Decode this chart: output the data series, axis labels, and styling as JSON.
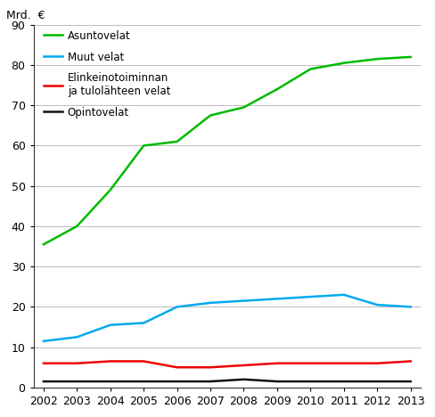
{
  "years": [
    2002,
    2003,
    2004,
    2005,
    2006,
    2007,
    2008,
    2009,
    2010,
    2011,
    2012,
    2013
  ],
  "asuntovelat": [
    35.5,
    40.0,
    49.0,
    60.0,
    61.0,
    67.5,
    69.5,
    74.0,
    79.0,
    80.5,
    81.5,
    82.0
  ],
  "muut_velat": [
    11.5,
    12.5,
    15.5,
    16.0,
    20.0,
    21.0,
    21.5,
    22.0,
    22.5,
    23.0,
    20.5,
    20.0
  ],
  "elinkeinotoiminnan_velat": [
    6.0,
    6.0,
    6.5,
    6.5,
    5.0,
    5.0,
    5.5,
    6.0,
    6.0,
    6.0,
    6.0,
    6.5
  ],
  "opintovelat": [
    1.5,
    1.5,
    1.5,
    1.5,
    1.5,
    1.5,
    2.0,
    1.5,
    1.5,
    1.5,
    1.5,
    1.5
  ],
  "asuntovelat_color": "#00bb00",
  "muut_velat_color": "#00aaee",
  "elinkeinotoiminnan_color": "#ee0000",
  "opintovelat_color": "#111111",
  "ylabel": "Mrd.  €",
  "ylim": [
    0,
    90
  ],
  "yticks": [
    0,
    10,
    20,
    30,
    40,
    50,
    60,
    70,
    80,
    90
  ],
  "legend_asuntovelat": "Asuntovelat",
  "legend_muut": "Muut velat",
  "legend_elinkeino_1": "Elinkeinotoiminnan",
  "legend_elinkeino_2": "ja tulolähteen velat",
  "legend_opinto": "Opintovelat",
  "background_color": "#ffffff",
  "grid_color": "#bbbbbb",
  "tick_label_fontsize": 9,
  "legend_fontsize": 8.5
}
